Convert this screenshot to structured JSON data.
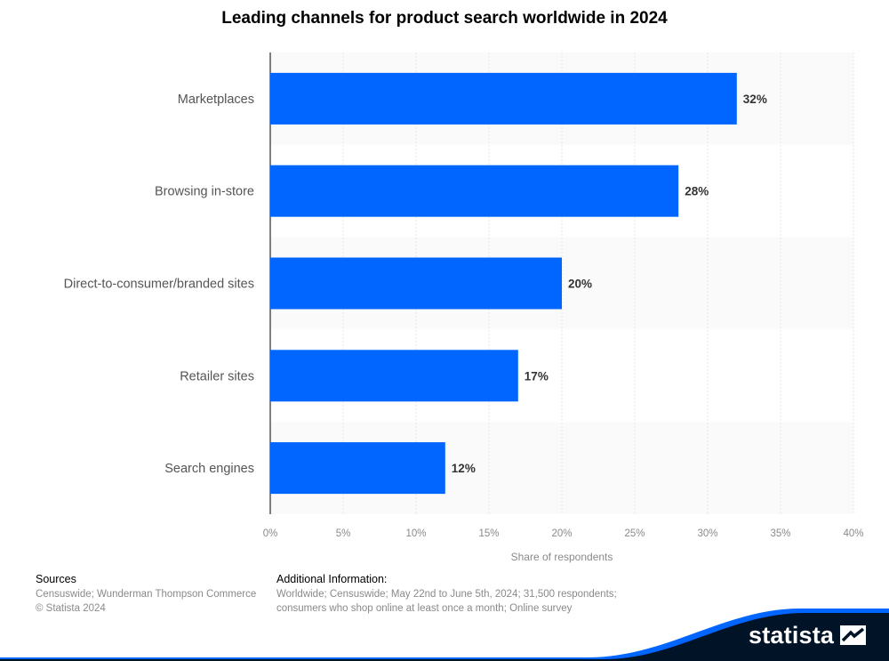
{
  "chart_data": {
    "type": "bar",
    "orientation": "horizontal",
    "title": "Leading channels for product search worldwide in 2024",
    "categories": [
      "Marketplaces",
      "Browsing in-store",
      "Direct-to-consumer/branded sites",
      "Retailer sites",
      "Search engines"
    ],
    "values": [
      32,
      28,
      20,
      17,
      12
    ],
    "value_labels": [
      "32%",
      "28%",
      "20%",
      "17%",
      "12%"
    ],
    "xlabel": "Share of respondents",
    "ylabel": "",
    "xlim": [
      0,
      40
    ],
    "ticks": [
      0,
      5,
      10,
      15,
      20,
      25,
      30,
      35,
      40
    ],
    "tick_labels": [
      "0%",
      "5%",
      "10%",
      "15%",
      "20%",
      "25%",
      "30%",
      "35%",
      "40%"
    ],
    "grid": true,
    "bar_color": "#0066ff"
  },
  "sources": {
    "heading": "Sources",
    "lines": [
      "Censuswide; Wunderman Thompson Commerce",
      "© Statista 2024"
    ]
  },
  "additional_info": {
    "heading": "Additional Information:",
    "text": "Worldwide; Censuswide; May 22nd to June 5th, 2024; 31,500 respondents; consumers who shop online at least once a month; Online survey"
  },
  "brand": {
    "name": "statista",
    "color": "#001327",
    "accent": "#0066ff"
  }
}
